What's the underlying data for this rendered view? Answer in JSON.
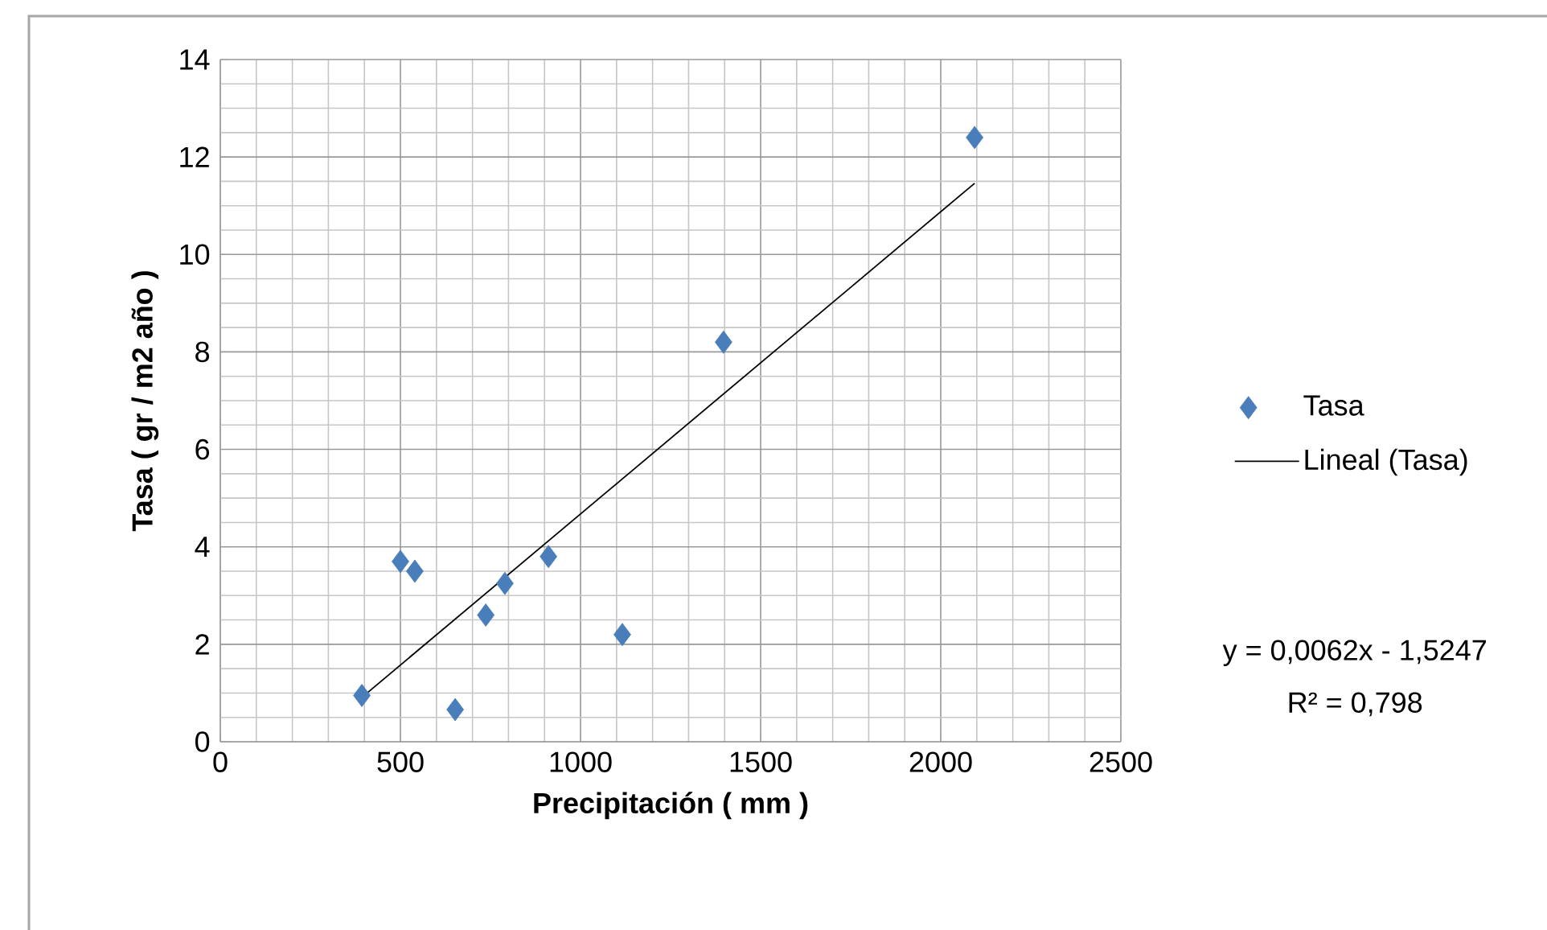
{
  "chart_data": {
    "type": "scatter",
    "xlabel": "Precipitación  ( mm )",
    "ylabel": "Tasa ( gr / m2 año )",
    "xlim": [
      0,
      2500
    ],
    "ylim": [
      0,
      14
    ],
    "xticks": [
      0,
      500,
      1000,
      1500,
      2000,
      2500
    ],
    "yticks": [
      0,
      2,
      4,
      6,
      8,
      10,
      12,
      14
    ],
    "grid": true,
    "legend": "right",
    "marker": "diamond",
    "series": [
      {
        "name": "Tasa",
        "color": "#4a7ebb",
        "x": [
          393,
          500,
          540,
          652,
          737,
          790,
          911,
          1116,
          1397,
          2094
        ],
        "values": [
          0.95,
          3.7,
          3.5,
          0.66,
          2.6,
          3.25,
          3.8,
          2.2,
          8.2,
          12.4
        ]
      },
      {
        "name": "Lineal (Tasa)",
        "type": "line",
        "color": "#000000",
        "marker": "none",
        "x": [
          393,
          2094
        ],
        "values": [
          0.91,
          11.46
        ]
      }
    ],
    "annotations": [
      "y = 0,0062x - 1,5247",
      "R² = 0,798"
    ]
  }
}
